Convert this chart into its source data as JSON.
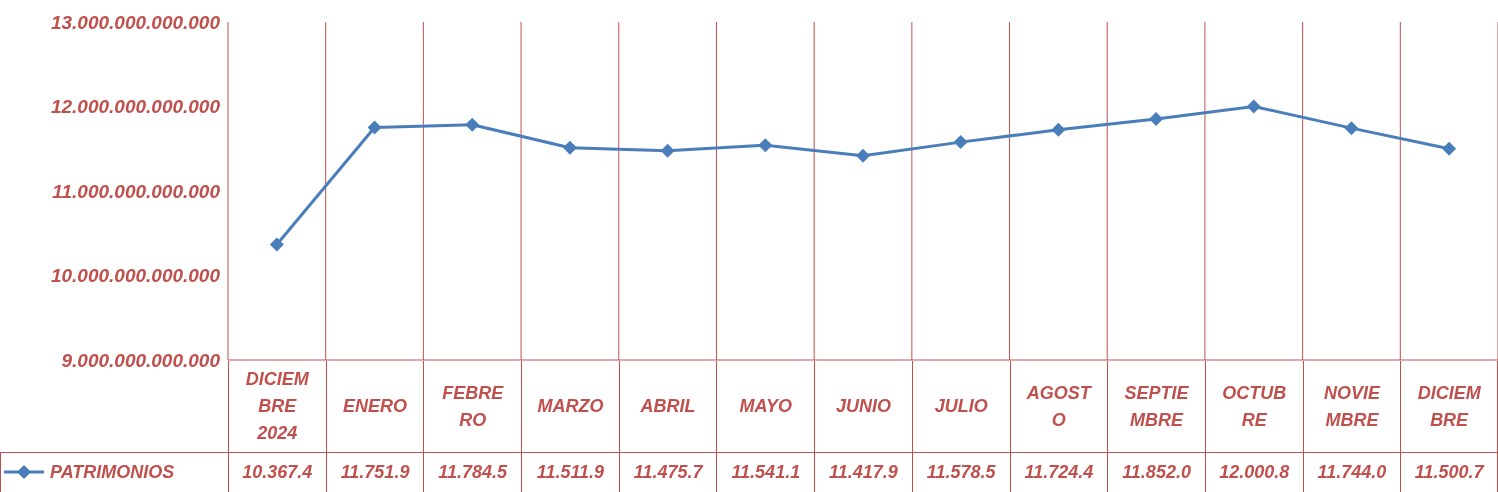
{
  "chart_data": {
    "type": "line",
    "categories": [
      "DICIEMBRE 2024",
      "ENERO",
      "FEBRERO",
      "MARZO",
      "ABRIL",
      "MAYO",
      "JUNIO",
      "JULIO",
      "AGOSTO",
      "SEPTIEMBRE",
      "OCTUBRE",
      "NOVIEMBRE",
      "DICIEMBRE"
    ],
    "series": [
      {
        "name": "PATRIMONIOS",
        "color": "#4a7ebb",
        "values": [
          10367400000000,
          11751900000000,
          11784500000000,
          11511900000000,
          11475700000000,
          11541100000000,
          11417900000000,
          11578500000000,
          11724400000000,
          11852000000000,
          12000800000000,
          11744000000000,
          11500700000000
        ],
        "value_labels": [
          "10.367.4",
          "11.751.9",
          "11.784.5",
          "11.511.9",
          "11.475.7",
          "11.541.1",
          "11.417.9",
          "11.578.5",
          "11.724.4",
          "11.852.0",
          "12.000.8",
          "11.744.0",
          "11.500.7"
        ]
      }
    ],
    "ylim": [
      9000000000000,
      13000000000000
    ],
    "yticks": [
      {
        "value": 9000000000000,
        "label": "9.000.000.000.000"
      },
      {
        "value": 10000000000000,
        "label": "10.000.000.000.000"
      },
      {
        "value": 11000000000000,
        "label": "11.000.000.000.000"
      },
      {
        "value": 12000000000000,
        "label": "12.000.000.000.000"
      },
      {
        "value": 13000000000000,
        "label": "13.000.000.000.000"
      }
    ],
    "grid": "x",
    "legend": "bottom",
    "marker": "diamond",
    "line_style": "solid"
  }
}
